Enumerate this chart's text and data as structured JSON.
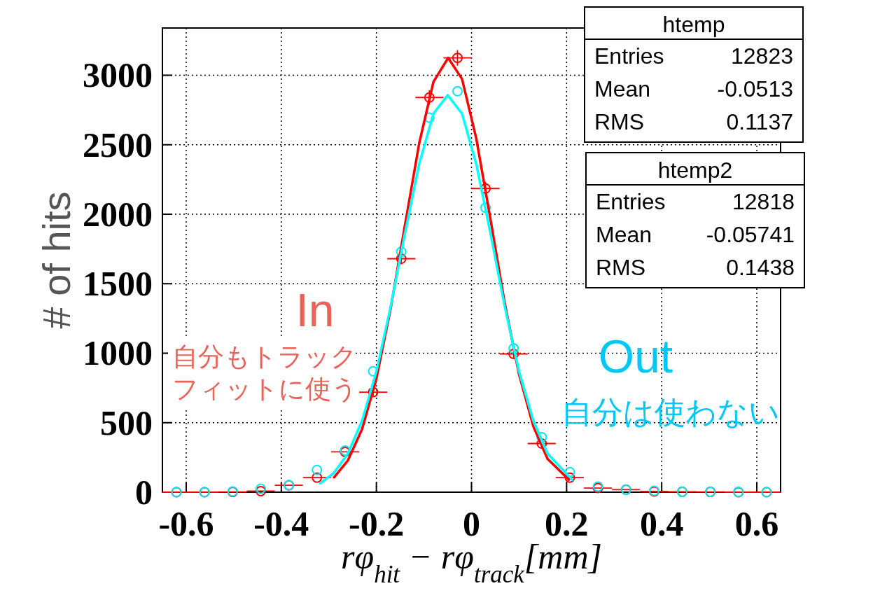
{
  "chart_data": {
    "type": "scatter",
    "xlabel": "rφ$_{hit}$ − rφ$_{track}$[mm]",
    "ylabel": "# of hits",
    "xlim": [
      -0.65,
      0.65
    ],
    "ylim": [
      0,
      3340
    ],
    "xticks": [
      -0.6,
      -0.4,
      -0.2,
      0,
      0.2,
      0.4,
      0.6
    ],
    "yticks": [
      0,
      500,
      1000,
      1500,
      2000,
      2500,
      3000
    ],
    "grid": true,
    "marker": "circle",
    "x": [
      -0.6205,
      -0.5614,
      -0.5023,
      -0.4432,
      -0.3841,
      -0.325,
      -0.2659,
      -0.2068,
      -0.1477,
      -0.0886,
      -0.0295,
      0.0295,
      0.0886,
      0.1477,
      0.2068,
      0.2659,
      0.325,
      0.3841,
      0.4432,
      0.5023,
      0.5614,
      0.6205
    ],
    "series": [
      {
        "color": "#ff0000",
        "values": [
          0,
          0,
          2,
          8,
          50,
          105,
          290,
          720,
          1680,
          2840,
          3125,
          2185,
          995,
          350,
          105,
          30,
          18,
          5,
          3,
          2,
          0,
          0
        ],
        "errors": [
          null,
          null,
          null,
          null,
          null,
          null,
          null,
          27,
          41,
          53,
          56,
          47,
          32,
          19,
          10,
          null,
          null,
          null,
          null,
          null,
          null,
          null
        ],
        "xerrors": [
          0.0295,
          0.0295,
          0.0295,
          0.0295,
          0.0295,
          0.0295,
          0.0295,
          0.0295,
          0.0295,
          0.0295,
          0.0295,
          0.0295,
          0.0295,
          0.0295,
          0.0295,
          0.0295,
          0.0295,
          0.0295,
          0.0295,
          0.0295,
          0.0295,
          0.0295
        ]
      },
      {
        "color": "#00e8f0",
        "values": [
          0,
          0,
          5,
          25,
          50,
          160,
          300,
          870,
          1730,
          2695,
          2885,
          2047,
          1035,
          395,
          145,
          40,
          18,
          10,
          2,
          3,
          2,
          0
        ]
      },
      {
        "type": "line",
        "marker": "none",
        "color": "#ff0000",
        "x": [
          -0.289,
          -0.26,
          -0.23,
          -0.2,
          -0.17,
          -0.14,
          -0.11,
          -0.08,
          -0.049,
          -0.02,
          0.01,
          0.04,
          0.07,
          0.1,
          0.13,
          0.16,
          0.205
        ],
        "values": [
          106,
          228,
          455,
          817,
          1321,
          1920,
          2510,
          2953,
          3125,
          2974,
          2546,
          1962,
          1358,
          847,
          474,
          239,
          90
        ]
      },
      {
        "type": "line",
        "marker": "none",
        "color": "#00ffff",
        "x": [
          -0.318,
          -0.29,
          -0.26,
          -0.23,
          -0.2,
          -0.17,
          -0.14,
          -0.11,
          -0.08,
          -0.05,
          -0.02,
          0.01,
          0.04,
          0.07,
          0.1,
          0.13,
          0.16,
          0.212
        ],
        "values": [
          64,
          136,
          277,
          515,
          869,
          1334,
          1861,
          2362,
          2724,
          2857,
          2724,
          2362,
          1861,
          1334,
          869,
          515,
          277,
          90
        ]
      }
    ],
    "annotations": [
      "In",
      "自分もトラック",
      "フィットに使う",
      "Out",
      "自分は使わない",
      "htemp",
      "Entries",
      "12823",
      "Mean",
      "-0.0513",
      "RMS",
      "0.1137",
      "htemp2",
      "Entries",
      "12818",
      "Mean",
      "-0.05741",
      "RMS",
      "0.1438"
    ]
  }
}
